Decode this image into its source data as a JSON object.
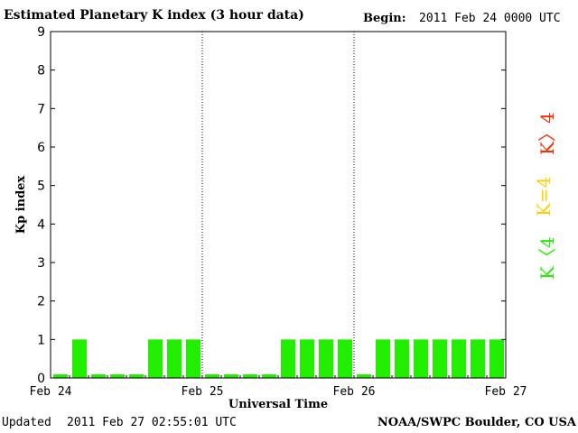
{
  "header": {
    "title": "Estimated Planetary K index (3 hour data)",
    "begin_label": "Begin:",
    "begin_value": "2011 Feb 24 0000 UTC"
  },
  "footer": {
    "updated_label": "Updated",
    "updated_value": "2011 Feb 27 02:55:01 UTC",
    "credit": "NOAA/SWPC Boulder, CO USA"
  },
  "legend": {
    "high": {
      "label": "K〉4",
      "color": "#ff2a00"
    },
    "mid": {
      "label": "K=4",
      "color": "#ffd000"
    },
    "low": {
      "label": "K〈4",
      "color": "#22ee00"
    }
  },
  "chart_data": {
    "type": "bar",
    "ylabel": "Kp index",
    "xlabel": "Universal Time",
    "ylim": [
      0,
      9
    ],
    "yticks": [
      0,
      1,
      2,
      3,
      4,
      5,
      6,
      7,
      8,
      9
    ],
    "day_labels": [
      "Feb 24",
      "Feb 25",
      "Feb 26",
      "Feb 27"
    ],
    "bar_color": "#22ee00",
    "values": [
      0,
      1,
      0,
      0,
      0,
      1,
      1,
      1,
      0,
      0,
      0,
      0,
      1,
      1,
      1,
      1,
      0,
      1,
      1,
      1,
      1,
      1,
      1,
      1
    ]
  }
}
